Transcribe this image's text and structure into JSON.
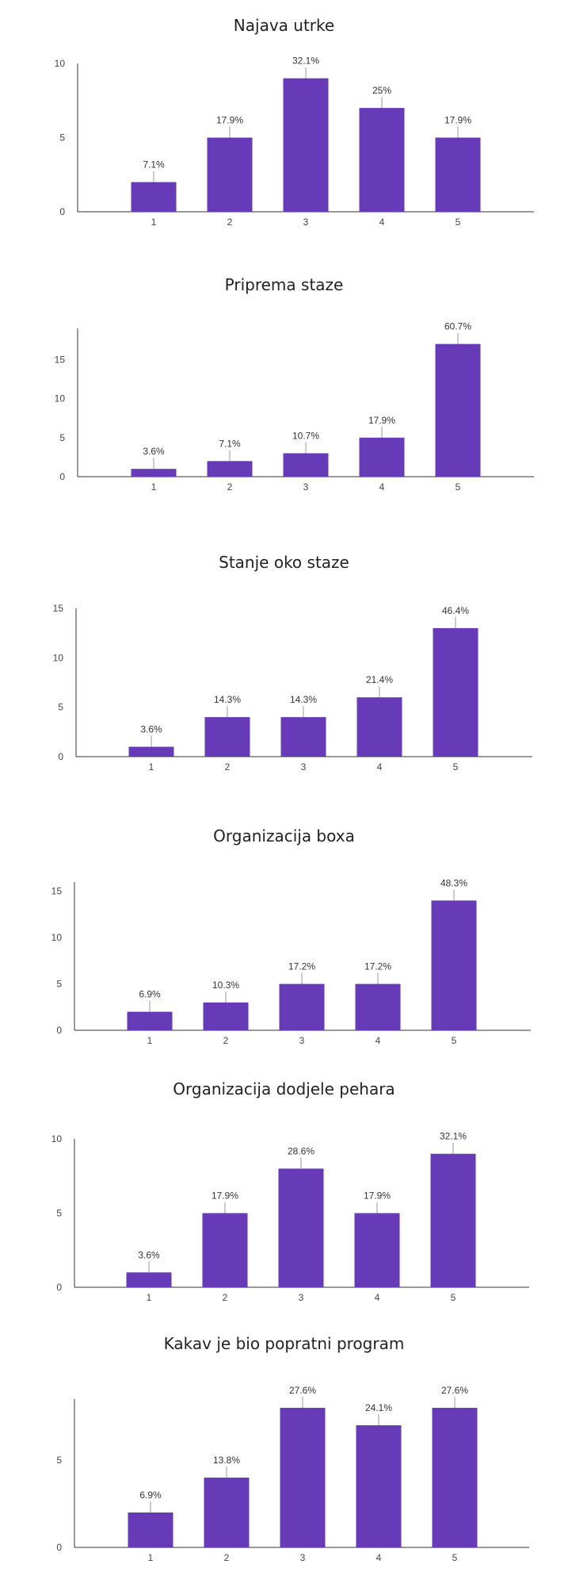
{
  "chart_data": [
    {
      "type": "bar",
      "title": "Najava utrke",
      "categories": [
        "1",
        "2",
        "3",
        "4",
        "5"
      ],
      "values": [
        2,
        5,
        9,
        7,
        5
      ],
      "labels": [
        "7.1%",
        "17.9%",
        "32.1%",
        "25%",
        "17.9%"
      ],
      "yticks": [
        0,
        5,
        10
      ],
      "ylim": [
        0,
        10
      ],
      "color": "#673ab7"
    },
    {
      "type": "bar",
      "title": "Priprema staze",
      "categories": [
        "1",
        "2",
        "3",
        "4",
        "5"
      ],
      "values": [
        1,
        2,
        3,
        5,
        17
      ],
      "labels": [
        "3.6%",
        "7.1%",
        "10.7%",
        "17.9%",
        "60.7%"
      ],
      "yticks": [
        0,
        5,
        10,
        15
      ],
      "ylim": [
        0,
        19
      ],
      "color": "#673ab7"
    },
    {
      "type": "bar",
      "title": "Stanje oko staze",
      "categories": [
        "1",
        "2",
        "3",
        "4",
        "5"
      ],
      "values": [
        1,
        4,
        4,
        6,
        13
      ],
      "labels": [
        "3.6%",
        "14.3%",
        "14.3%",
        "21.4%",
        "46.4%"
      ],
      "yticks": [
        0,
        5,
        10,
        15
      ],
      "ylim": [
        0,
        15
      ],
      "color": "#673ab7"
    },
    {
      "type": "bar",
      "title": "Organizacija boxa",
      "categories": [
        "1",
        "2",
        "3",
        "4",
        "5"
      ],
      "values": [
        2,
        3,
        5,
        5,
        14
      ],
      "labels": [
        "6.9%",
        "10.3%",
        "17.2%",
        "17.2%",
        "48.3%"
      ],
      "yticks": [
        0,
        5,
        10,
        15
      ],
      "ylim": [
        0,
        16
      ],
      "color": "#673ab7"
    },
    {
      "type": "bar",
      "title": "Organizacija dodjele pehara",
      "categories": [
        "1",
        "2",
        "3",
        "4",
        "5"
      ],
      "values": [
        1,
        5,
        8,
        5,
        9
      ],
      "labels": [
        "3.6%",
        "17.9%",
        "28.6%",
        "17.9%",
        "32.1%"
      ],
      "yticks": [
        0,
        5,
        10
      ],
      "ylim": [
        0,
        10
      ],
      "color": "#673ab7"
    },
    {
      "type": "bar",
      "title": "Kakav je bio popratni program",
      "categories": [
        "1",
        "2",
        "3",
        "4",
        "5"
      ],
      "values": [
        2,
        4,
        8,
        7,
        8
      ],
      "labels": [
        "6.9%",
        "13.8%",
        "27.6%",
        "24.1%",
        "27.6%"
      ],
      "yticks": [
        0,
        5
      ],
      "ylim": [
        0,
        8.5
      ],
      "color": "#673ab7"
    }
  ]
}
